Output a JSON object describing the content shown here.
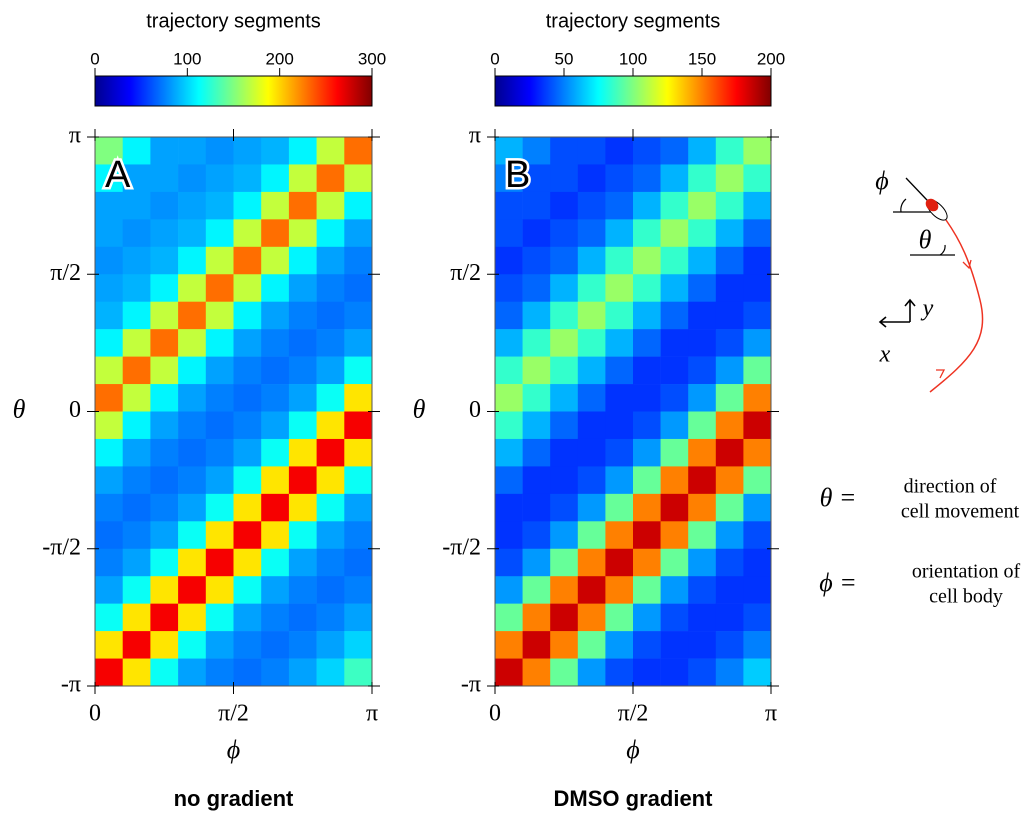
{
  "chart_data": [
    {
      "type": "heatmap",
      "panel_label": "A",
      "colorbar_label": "trajectory segments",
      "colormap": "jet",
      "clim": [
        0,
        300
      ],
      "cbar_ticks": [
        0,
        100,
        200,
        300
      ],
      "xlabel": "ϕ",
      "ylabel": "θ",
      "caption": "no gradient",
      "xlim": [
        0,
        3.1416
      ],
      "ylim": [
        -3.1416,
        3.1416
      ],
      "xticks": [
        0,
        {
          "value": 1.5708,
          "label": "π/2"
        },
        {
          "value": 3.1416,
          "label": "π"
        }
      ],
      "yticks": [
        {
          "value": -3.1416,
          "label": "-π"
        },
        {
          "value": -1.5708,
          "label": "-π/2"
        },
        0,
        {
          "value": 1.5708,
          "label": "π/2"
        },
        {
          "value": 3.1416,
          "label": "π"
        }
      ],
      "z": [
        [
          150,
          110,
          85,
          85,
          80,
          85,
          90,
          110,
          170,
          230
        ],
        [
          110,
          85,
          85,
          80,
          85,
          90,
          110,
          170,
          230,
          170
        ],
        [
          85,
          85,
          80,
          85,
          90,
          110,
          170,
          230,
          170,
          110
        ],
        [
          85,
          80,
          85,
          90,
          110,
          170,
          230,
          170,
          110,
          85
        ],
        [
          80,
          85,
          90,
          110,
          170,
          230,
          170,
          110,
          85,
          75
        ],
        [
          85,
          90,
          110,
          170,
          230,
          170,
          110,
          85,
          75,
          70
        ],
        [
          90,
          110,
          170,
          230,
          170,
          110,
          85,
          75,
          70,
          75
        ],
        [
          110,
          170,
          230,
          170,
          110,
          85,
          75,
          70,
          75,
          85
        ],
        [
          170,
          230,
          170,
          110,
          85,
          75,
          70,
          75,
          85,
          115
        ],
        [
          230,
          170,
          110,
          85,
          75,
          70,
          75,
          85,
          115,
          195
        ],
        [
          170,
          110,
          85,
          75,
          70,
          75,
          85,
          115,
          195,
          265
        ],
        [
          110,
          85,
          75,
          70,
          75,
          85,
          115,
          195,
          265,
          195
        ],
        [
          85,
          75,
          70,
          75,
          85,
          115,
          195,
          265,
          195,
          115
        ],
        [
          75,
          70,
          75,
          85,
          115,
          195,
          265,
          195,
          115,
          85
        ],
        [
          70,
          75,
          85,
          115,
          195,
          265,
          195,
          115,
          85,
          75
        ],
        [
          75,
          85,
          115,
          195,
          265,
          195,
          115,
          85,
          75,
          70
        ],
        [
          85,
          115,
          195,
          265,
          195,
          115,
          85,
          75,
          70,
          75
        ],
        [
          115,
          195,
          265,
          195,
          115,
          85,
          75,
          70,
          75,
          85
        ],
        [
          195,
          265,
          195,
          115,
          85,
          75,
          70,
          75,
          85,
          100
        ],
        [
          265,
          195,
          115,
          85,
          75,
          70,
          75,
          85,
          100,
          130
        ]
      ]
    },
    {
      "type": "heatmap",
      "panel_label": "B",
      "colorbar_label": "trajectory segments",
      "colormap": "jet",
      "clim": [
        0,
        200
      ],
      "cbar_ticks": [
        0,
        50,
        100,
        150,
        200
      ],
      "xlabel": "ϕ",
      "ylabel": "θ",
      "caption": "DMSO gradient",
      "xlim": [
        0,
        3.1416
      ],
      "ylim": [
        -3.1416,
        3.1416
      ],
      "xticks": [
        0,
        {
          "value": 1.5708,
          "label": "π/2"
        },
        {
          "value": 3.1416,
          "label": "π"
        }
      ],
      "yticks": [
        {
          "value": -3.1416,
          "label": "-π"
        },
        {
          "value": -1.5708,
          "label": "-π/2"
        },
        0,
        {
          "value": 1.5708,
          "label": "π/2"
        },
        {
          "value": 3.1416,
          "label": "π"
        }
      ],
      "z": [
        [
          60,
          50,
          40,
          40,
          35,
          40,
          45,
          60,
          85,
          105
        ],
        [
          50,
          40,
          40,
          35,
          40,
          45,
          60,
          85,
          105,
          85
        ],
        [
          40,
          40,
          35,
          40,
          45,
          60,
          85,
          105,
          85,
          60
        ],
        [
          40,
          35,
          40,
          45,
          60,
          85,
          105,
          85,
          60,
          45
        ],
        [
          35,
          40,
          45,
          60,
          85,
          105,
          85,
          60,
          45,
          35
        ],
        [
          40,
          45,
          60,
          85,
          105,
          85,
          60,
          45,
          35,
          35
        ],
        [
          45,
          60,
          85,
          105,
          85,
          60,
          45,
          35,
          35,
          40
        ],
        [
          60,
          85,
          105,
          85,
          60,
          45,
          35,
          35,
          40,
          55
        ],
        [
          85,
          105,
          85,
          60,
          45,
          35,
          35,
          40,
          55,
          95
        ],
        [
          105,
          85,
          60,
          45,
          35,
          35,
          40,
          55,
          95,
          150
        ],
        [
          85,
          60,
          45,
          35,
          35,
          40,
          55,
          95,
          150,
          185
        ],
        [
          60,
          45,
          35,
          35,
          40,
          55,
          95,
          150,
          185,
          150
        ],
        [
          45,
          35,
          35,
          40,
          55,
          95,
          150,
          185,
          150,
          95
        ],
        [
          35,
          35,
          40,
          55,
          95,
          150,
          185,
          150,
          95,
          55
        ],
        [
          35,
          40,
          55,
          95,
          150,
          185,
          150,
          95,
          55,
          40
        ],
        [
          40,
          55,
          95,
          150,
          185,
          150,
          95,
          55,
          40,
          35
        ],
        [
          55,
          95,
          150,
          185,
          150,
          95,
          55,
          40,
          35,
          35
        ],
        [
          95,
          150,
          185,
          150,
          95,
          55,
          40,
          35,
          35,
          40
        ],
        [
          150,
          185,
          150,
          95,
          55,
          40,
          35,
          35,
          40,
          50
        ],
        [
          185,
          150,
          95,
          55,
          40,
          35,
          35,
          40,
          50,
          65
        ]
      ]
    }
  ],
  "diagram": {
    "phi": "ϕ",
    "theta": "θ",
    "y": "y",
    "x": "x",
    "theta_eq": "θ =",
    "theta_def": [
      "direction of",
      "cell movement"
    ],
    "phi_eq": "ϕ =",
    "phi_def": [
      "orientation of",
      "cell body"
    ]
  }
}
